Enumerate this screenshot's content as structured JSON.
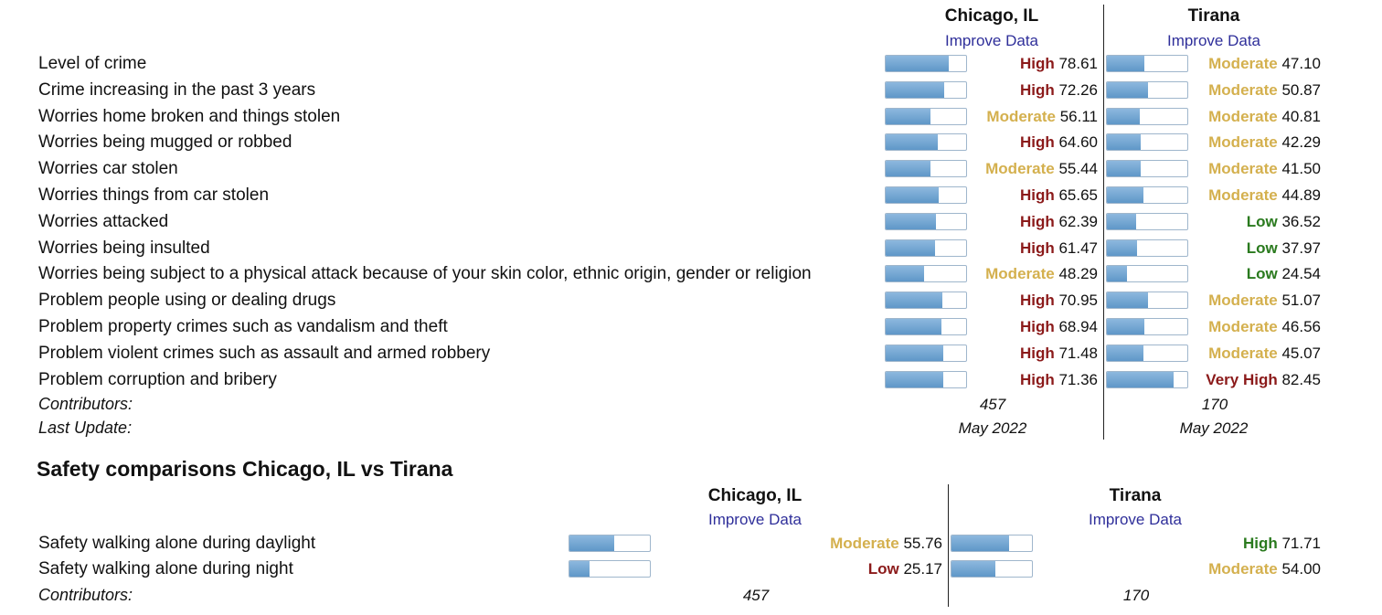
{
  "crime": {
    "city1": {
      "name": "Chicago, IL",
      "improve": "Improve Data",
      "contributors": "457",
      "last_update": "May 2022"
    },
    "city2": {
      "name": "Tirana",
      "improve": "Improve Data",
      "contributors": "170",
      "last_update": "May 2022"
    },
    "contributors_label": "Contributors:",
    "last_update_label": "Last Update:",
    "rows": [
      {
        "label": "Level of crime",
        "c1": {
          "rating": "High",
          "value": "78.61"
        },
        "c2": {
          "rating": "Moderate",
          "value": "47.10"
        }
      },
      {
        "label": "Crime increasing in the past 3 years",
        "c1": {
          "rating": "High",
          "value": "72.26"
        },
        "c2": {
          "rating": "Moderate",
          "value": "50.87"
        }
      },
      {
        "label": "Worries home broken and things stolen",
        "c1": {
          "rating": "Moderate",
          "value": "56.11"
        },
        "c2": {
          "rating": "Moderate",
          "value": "40.81"
        }
      },
      {
        "label": "Worries being mugged or robbed",
        "c1": {
          "rating": "High",
          "value": "64.60"
        },
        "c2": {
          "rating": "Moderate",
          "value": "42.29"
        }
      },
      {
        "label": "Worries car stolen",
        "c1": {
          "rating": "Moderate",
          "value": "55.44"
        },
        "c2": {
          "rating": "Moderate",
          "value": "41.50"
        }
      },
      {
        "label": "Worries things from car stolen",
        "c1": {
          "rating": "High",
          "value": "65.65"
        },
        "c2": {
          "rating": "Moderate",
          "value": "44.89"
        }
      },
      {
        "label": "Worries attacked",
        "c1": {
          "rating": "High",
          "value": "62.39"
        },
        "c2": {
          "rating": "Low",
          "value": "36.52"
        }
      },
      {
        "label": "Worries being insulted",
        "c1": {
          "rating": "High",
          "value": "61.47"
        },
        "c2": {
          "rating": "Low",
          "value": "37.97"
        }
      },
      {
        "label": "Worries being subject to a physical attack because of your skin color, ethnic origin, gender or religion",
        "c1": {
          "rating": "Moderate",
          "value": "48.29"
        },
        "c2": {
          "rating": "Low",
          "value": "24.54"
        }
      },
      {
        "label": "Problem people using or dealing drugs",
        "c1": {
          "rating": "High",
          "value": "70.95"
        },
        "c2": {
          "rating": "Moderate",
          "value": "51.07"
        }
      },
      {
        "label": "Problem property crimes such as vandalism and theft",
        "c1": {
          "rating": "High",
          "value": "68.94"
        },
        "c2": {
          "rating": "Moderate",
          "value": "46.56"
        }
      },
      {
        "label": "Problem violent crimes such as assault and armed robbery",
        "c1": {
          "rating": "High",
          "value": "71.48"
        },
        "c2": {
          "rating": "Moderate",
          "value": "45.07"
        }
      },
      {
        "label": "Problem corruption and bribery",
        "c1": {
          "rating": "High",
          "value": "71.36"
        },
        "c2": {
          "rating": "Very High",
          "value": "82.45"
        }
      }
    ]
  },
  "safety": {
    "title": "Safety comparisons Chicago, IL vs Tirana",
    "city1": {
      "name": "Chicago, IL",
      "improve": "Improve Data",
      "contributors": "457"
    },
    "city2": {
      "name": "Tirana",
      "improve": "Improve Data",
      "contributors": "170"
    },
    "contributors_label": "Contributors:",
    "rows": [
      {
        "label": "Safety walking alone during daylight",
        "c1": {
          "rating": "Moderate",
          "value": "55.76"
        },
        "c2": {
          "rating": "High",
          "value": "71.71"
        }
      },
      {
        "label": "Safety walking alone during night",
        "c1": {
          "rating": "Low",
          "value": "25.17"
        },
        "c2": {
          "rating": "Moderate",
          "value": "54.00"
        }
      }
    ]
  }
}
